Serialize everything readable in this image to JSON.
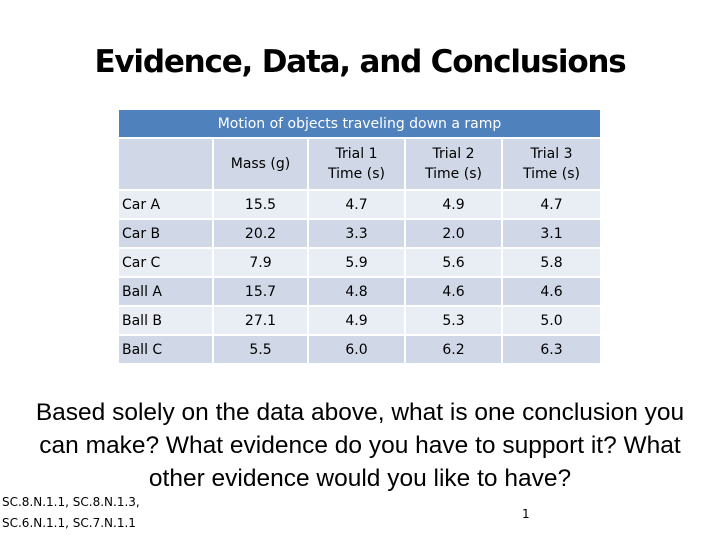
{
  "slide": {
    "title": "Evidence, Data, and Conclusions",
    "table": {
      "caption": "Motion of objects traveling down a ramp",
      "columns": [
        {
          "line1": "",
          "line2": ""
        },
        {
          "line1": "Mass (g)",
          "line2": ""
        },
        {
          "line1": "Trial 1",
          "line2": "Time (s)"
        },
        {
          "line1": "Trial 2",
          "line2": "Time (s)"
        },
        {
          "line1": "Trial 3",
          "line2": "Time (s)"
        }
      ],
      "rows": [
        [
          "Car A",
          "15.5",
          "4.7",
          "4.9",
          "4.7"
        ],
        [
          "Car B",
          "20.2",
          "3.3",
          "2.0",
          "3.1"
        ],
        [
          "Car C",
          "7.9",
          "5.9",
          "5.6",
          "5.8"
        ],
        [
          "Ball A",
          "15.7",
          "4.8",
          "4.6",
          "4.6"
        ],
        [
          "Ball B",
          "27.1",
          "4.9",
          "5.3",
          "5.0"
        ],
        [
          "Ball C",
          "5.5",
          "6.0",
          "6.2",
          "6.3"
        ]
      ]
    },
    "question": "Based solely on the data above, what is one conclusion you can make?  What evidence do you have to support it?  What other evidence would you like to have?",
    "standards_line1": "SC.8.N.1.1, SC.8.N.1.3,",
    "standards_line2": "SC.6.N.1.1, SC.7.N.1.1",
    "page_number": "1"
  }
}
